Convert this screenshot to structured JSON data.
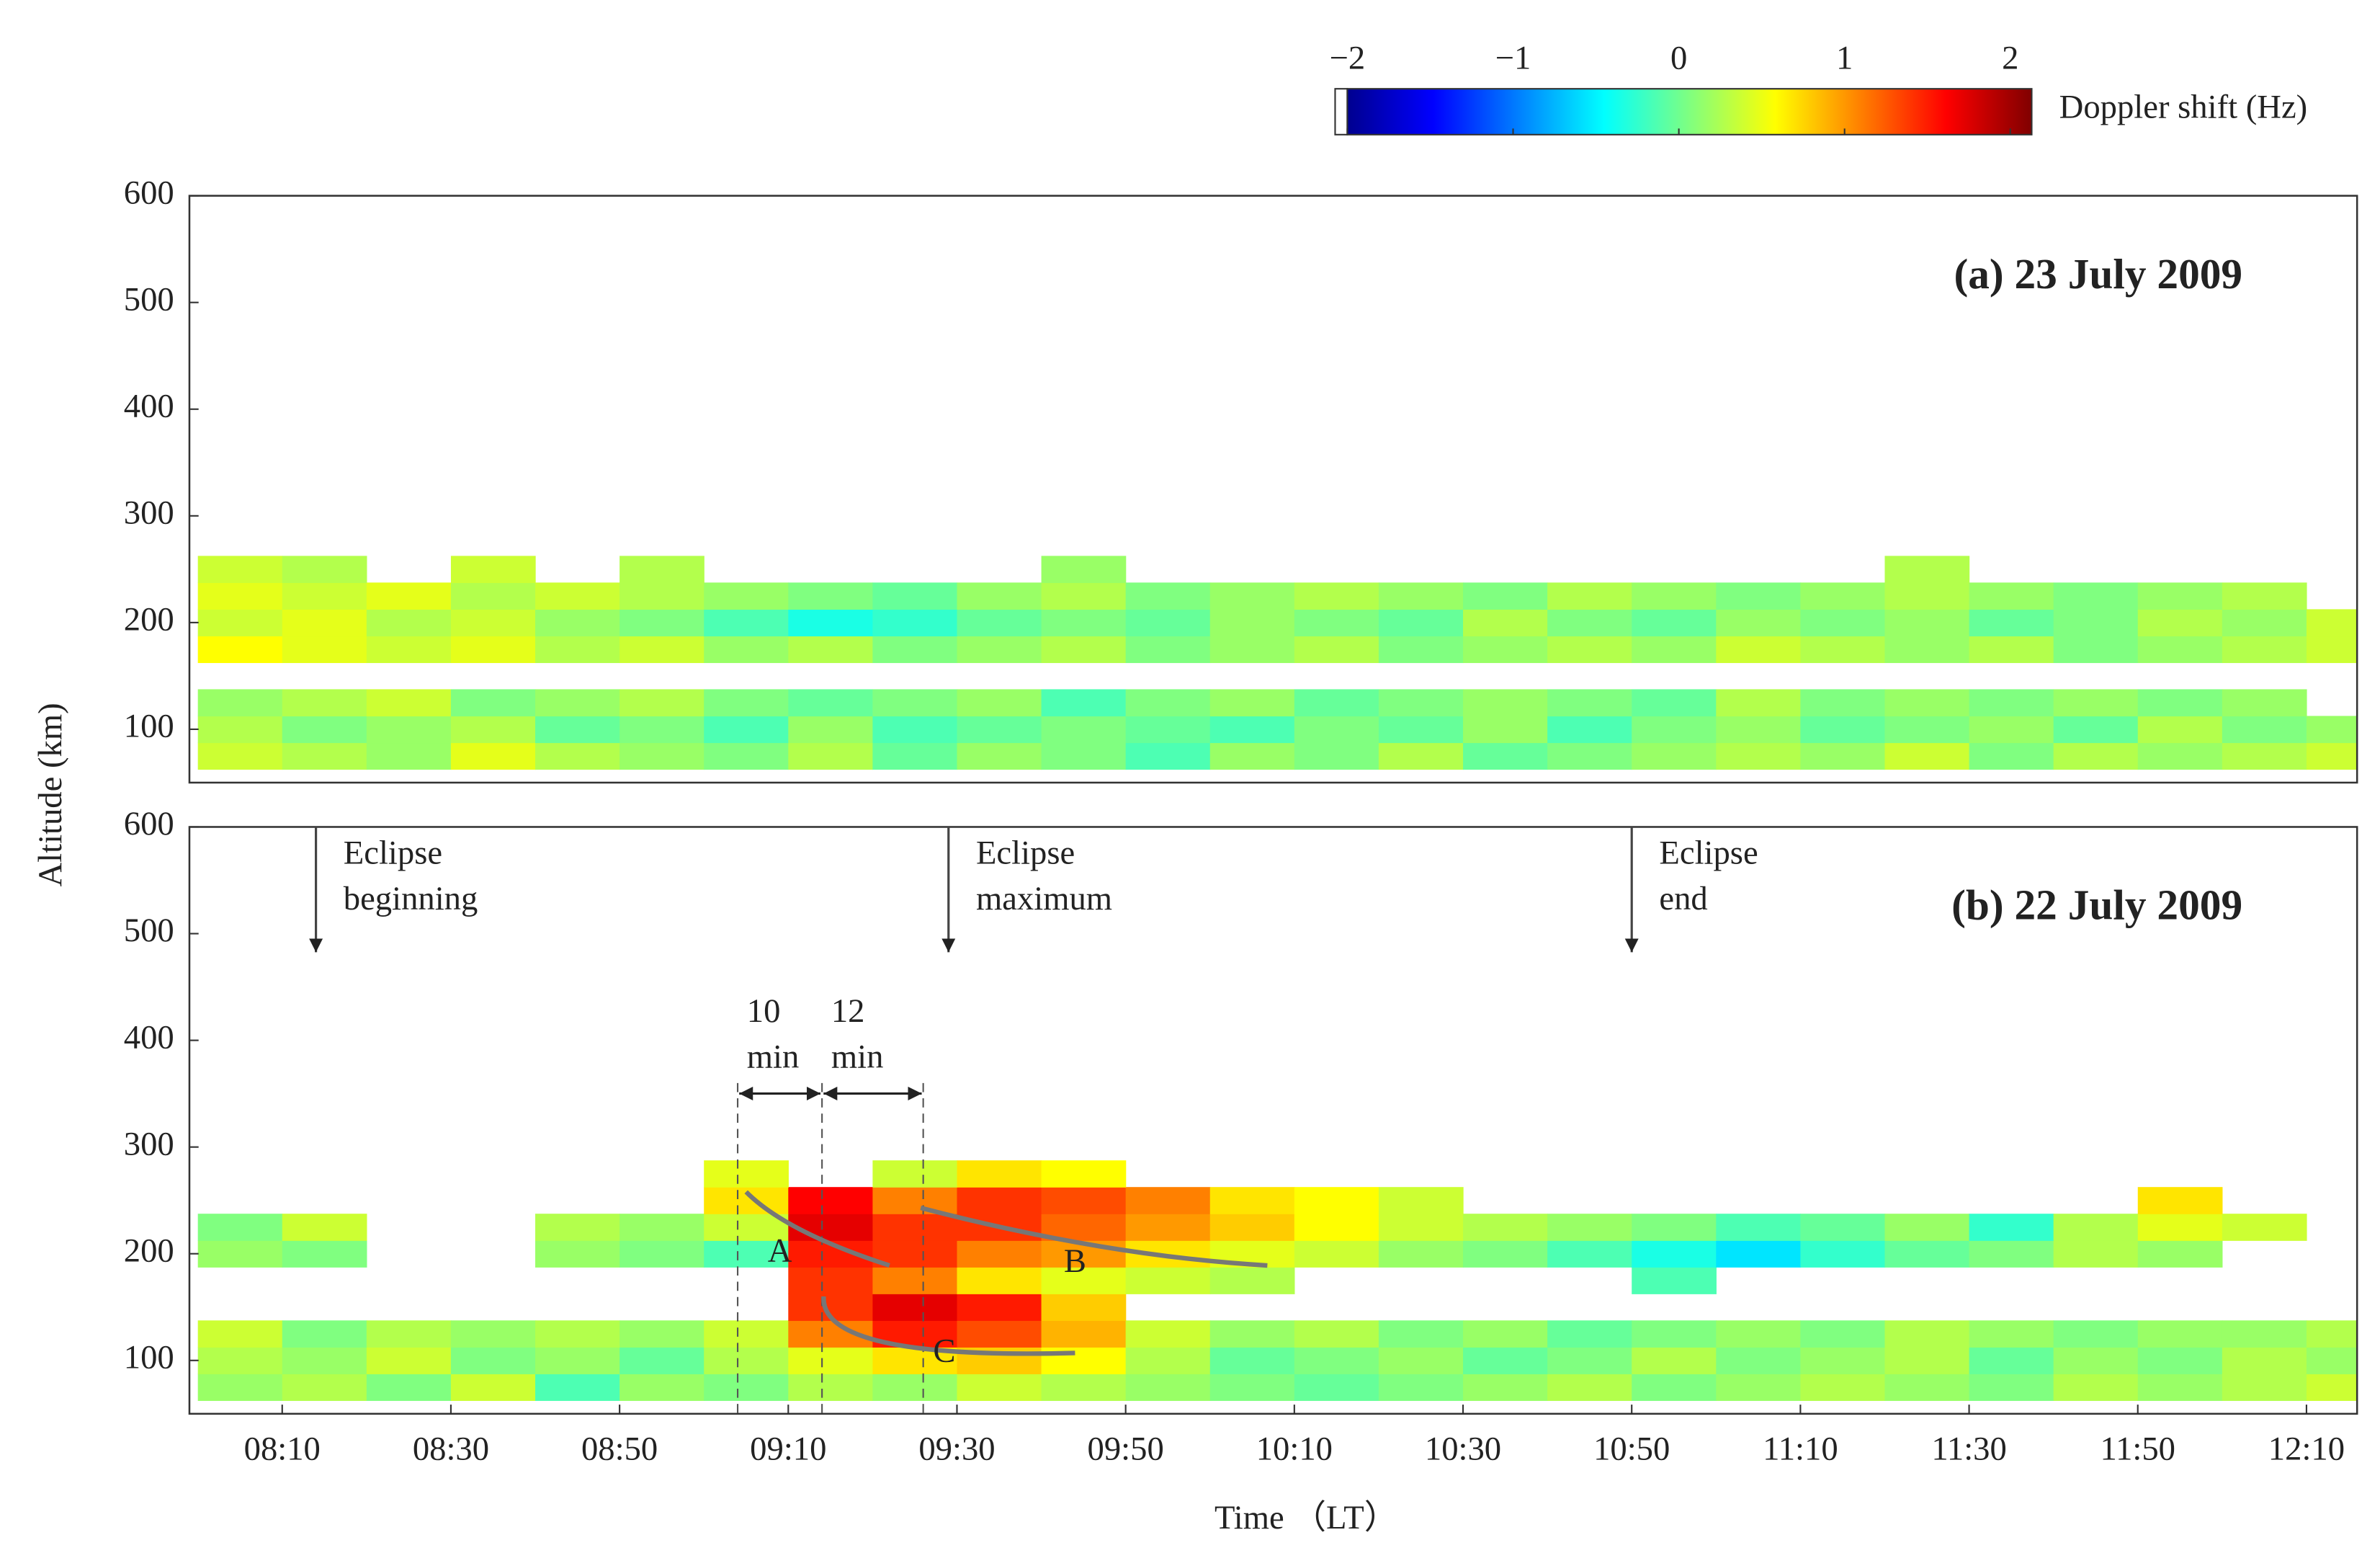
{
  "chart_data": [
    {
      "type": "heatmap",
      "title": "(a)  23 July 2009",
      "ylabel": "Altitude (km)",
      "xlim": [
        479,
        736
      ],
      "ylim": [
        50,
        600
      ],
      "yticks": [
        100,
        200,
        300,
        400,
        500,
        600
      ],
      "colorbar": {
        "label": "Doppler shift (Hz)",
        "lim": [
          -2,
          2
        ],
        "colormap": "jet",
        "ticks": [
          {
            "value": -2,
            "label": "−2"
          },
          {
            "value": -1,
            "label": "−1"
          },
          0,
          1,
          2
        ]
      },
      "x": [
        485,
        495,
        505,
        515,
        525,
        535,
        545,
        555,
        565,
        575,
        585,
        595,
        605,
        615,
        625,
        635,
        645,
        655,
        665,
        675,
        685,
        695,
        705,
        715,
        725,
        735
      ],
      "y": [
        75,
        100,
        125,
        150,
        175,
        200,
        225,
        250,
        275
      ],
      "z": [
        [
          0.3,
          0.2,
          0.1,
          0.4,
          0.2,
          0.1,
          0.0,
          0.2,
          -0.1,
          0.1,
          0.0,
          -0.2,
          0.1,
          0.0,
          0.2,
          -0.1,
          0.0,
          0.1,
          0.2,
          0.1,
          0.3,
          0.0,
          0.2,
          0.1,
          0.2,
          0.3
        ],
        [
          0.2,
          0.0,
          0.1,
          0.2,
          -0.1,
          0.0,
          -0.2,
          0.1,
          -0.2,
          -0.1,
          0.0,
          -0.1,
          -0.2,
          0.0,
          -0.1,
          0.1,
          -0.2,
          0.0,
          0.1,
          -0.1,
          0.0,
          0.1,
          -0.1,
          0.2,
          0.0,
          0.1
        ],
        [
          0.1,
          0.2,
          0.3,
          0.0,
          0.1,
          0.2,
          0.0,
          -0.1,
          0.0,
          0.1,
          -0.2,
          0.0,
          0.1,
          -0.1,
          0.0,
          0.1,
          0.0,
          -0.1,
          0.2,
          0.0,
          0.1,
          0.0,
          0.1,
          0.0,
          0.1,
          null
        ],
        [
          null,
          null,
          null,
          null,
          null,
          null,
          null,
          null,
          null,
          null,
          null,
          null,
          null,
          null,
          null,
          null,
          null,
          null,
          null,
          null,
          null,
          null,
          null,
          null,
          null,
          null
        ],
        [
          0.5,
          0.4,
          0.3,
          0.4,
          0.2,
          0.3,
          0.1,
          0.2,
          0.0,
          0.1,
          0.2,
          0.0,
          0.1,
          0.2,
          0.0,
          0.1,
          0.2,
          0.1,
          0.3,
          0.2,
          0.1,
          0.2,
          0.0,
          0.1,
          0.2,
          0.3
        ],
        [
          0.3,
          0.4,
          0.2,
          0.3,
          0.1,
          0.0,
          -0.2,
          -0.4,
          -0.3,
          -0.1,
          0.0,
          -0.1,
          0.1,
          0.0,
          -0.1,
          0.2,
          0.0,
          -0.1,
          0.1,
          0.0,
          0.1,
          -0.1,
          0.0,
          0.2,
          0.1,
          0.3
        ],
        [
          0.4,
          0.3,
          0.4,
          0.2,
          0.3,
          0.2,
          0.1,
          0.0,
          -0.1,
          0.1,
          0.2,
          0.0,
          0.1,
          0.2,
          0.1,
          0.0,
          0.2,
          0.1,
          0.0,
          0.1,
          0.2,
          0.1,
          0.0,
          0.1,
          0.2,
          null
        ],
        [
          0.3,
          0.2,
          null,
          0.3,
          null,
          0.2,
          null,
          null,
          null,
          null,
          0.1,
          null,
          null,
          null,
          null,
          null,
          null,
          null,
          null,
          null,
          0.2,
          null,
          null,
          null,
          null,
          null
        ],
        [
          null,
          null,
          null,
          null,
          null,
          null,
          null,
          null,
          null,
          null,
          null,
          null,
          null,
          null,
          null,
          null,
          null,
          null,
          null,
          null,
          null,
          null,
          null,
          null,
          null,
          null
        ]
      ]
    },
    {
      "type": "heatmap",
      "title": "(b) 22 July 2009",
      "xlabel": "Time （LT）",
      "xlim": [
        479,
        736
      ],
      "ylim": [
        50,
        600
      ],
      "yticks": [
        100,
        200,
        300,
        400,
        500,
        600
      ],
      "xticks": [
        {
          "value": 490,
          "label": "08:10"
        },
        {
          "value": 510,
          "label": "08:30"
        },
        {
          "value": 530,
          "label": "08:50"
        },
        {
          "value": 550,
          "label": "09:10"
        },
        {
          "value": 570,
          "label": "09:30"
        },
        {
          "value": 590,
          "label": "09:50"
        },
        {
          "value": 610,
          "label": "10:10"
        },
        {
          "value": 630,
          "label": "10:30"
        },
        {
          "value": 650,
          "label": "10:50"
        },
        {
          "value": 670,
          "label": "11:10"
        },
        {
          "value": 690,
          "label": "11:30"
        },
        {
          "value": 710,
          "label": "11:50"
        },
        {
          "value": 730,
          "label": "12:10"
        }
      ],
      "x": [
        485,
        495,
        505,
        515,
        525,
        535,
        545,
        555,
        565,
        575,
        585,
        595,
        605,
        615,
        625,
        635,
        645,
        655,
        665,
        675,
        685,
        695,
        705,
        715,
        725,
        735
      ],
      "y": [
        75,
        100,
        125,
        150,
        175,
        200,
        225,
        250,
        275
      ],
      "z": [
        [
          0.1,
          0.2,
          0.0,
          0.3,
          -0.2,
          0.1,
          0.0,
          0.2,
          0.1,
          0.3,
          0.2,
          0.1,
          0.0,
          -0.1,
          0.0,
          0.1,
          0.2,
          0.0,
          0.1,
          0.2,
          0.1,
          0.0,
          0.2,
          0.1,
          0.2,
          0.3
        ],
        [
          0.2,
          0.1,
          0.3,
          0.0,
          0.1,
          -0.1,
          0.2,
          0.4,
          0.6,
          0.7,
          0.5,
          0.2,
          -0.1,
          0.0,
          0.1,
          -0.1,
          0.0,
          0.2,
          0.0,
          0.1,
          0.2,
          -0.1,
          0.1,
          0.0,
          0.2,
          0.1
        ],
        [
          0.3,
          0.0,
          0.2,
          0.1,
          0.2,
          0.1,
          0.3,
          1.0,
          1.4,
          1.2,
          0.8,
          0.3,
          0.1,
          0.2,
          0.0,
          0.1,
          -0.1,
          0.0,
          0.1,
          0.0,
          0.2,
          0.1,
          0.0,
          0.1,
          0.1,
          0.2
        ],
        [
          null,
          null,
          null,
          null,
          null,
          null,
          null,
          1.3,
          1.6,
          1.4,
          0.7,
          null,
          null,
          null,
          null,
          null,
          null,
          null,
          null,
          null,
          null,
          null,
          null,
          null,
          null,
          null
        ],
        [
          null,
          null,
          null,
          null,
          null,
          null,
          null,
          1.3,
          1.0,
          0.6,
          0.4,
          0.3,
          0.2,
          null,
          null,
          null,
          null,
          -0.2,
          null,
          null,
          null,
          null,
          null,
          null,
          null,
          null
        ],
        [
          0.1,
          0.0,
          null,
          null,
          0.1,
          0.0,
          -0.2,
          1.4,
          1.3,
          1.0,
          0.9,
          0.6,
          0.4,
          0.3,
          0.1,
          0.0,
          -0.2,
          -0.4,
          -0.6,
          -0.3,
          -0.1,
          0.0,
          0.2,
          0.1,
          null,
          null
        ],
        [
          0.0,
          0.3,
          null,
          null,
          0.2,
          0.1,
          0.3,
          1.6,
          1.3,
          1.3,
          1.1,
          0.9,
          0.7,
          0.5,
          0.3,
          0.2,
          0.1,
          0.0,
          -0.2,
          -0.1,
          0.1,
          -0.3,
          0.2,
          0.4,
          0.3,
          null
        ],
        [
          null,
          null,
          null,
          null,
          null,
          null,
          0.6,
          1.5,
          1.0,
          1.3,
          1.2,
          1.0,
          0.6,
          0.5,
          0.3,
          null,
          null,
          null,
          null,
          null,
          null,
          null,
          null,
          0.6,
          null,
          null
        ],
        [
          null,
          null,
          null,
          null,
          null,
          null,
          0.4,
          null,
          0.3,
          0.6,
          0.5,
          null,
          null,
          null,
          null,
          null,
          null,
          null,
          null,
          null,
          null,
          null,
          null,
          null,
          null,
          null
        ]
      ],
      "events": [
        {
          "x": 494,
          "lines": [
            "Eclipse",
            "beginning"
          ]
        },
        {
          "x": 569,
          "lines": [
            "Eclipse",
            "maximum"
          ]
        },
        {
          "x": 650,
          "lines": [
            "Eclipse",
            "end"
          ]
        }
      ],
      "dividers": [
        544,
        554,
        566
      ],
      "intervals": [
        {
          "x0": 544,
          "x1": 554,
          "lines": [
            "10",
            "min"
          ]
        },
        {
          "x0": 554,
          "x1": 566,
          "lines": [
            "12",
            "min"
          ]
        }
      ],
      "curves": [
        {
          "label": "A",
          "at": [
            549,
            200
          ],
          "points": [
            [
              545,
              258
            ],
            [
              551.6,
              222
            ],
            [
              562,
              189
            ]
          ]
        },
        {
          "label": "B",
          "at": [
            584,
            190
          ],
          "points": [
            [
              565.7,
              243
            ],
            [
              586.9,
              207
            ],
            [
              606.8,
              189
            ]
          ]
        },
        {
          "label": "C",
          "at": [
            568.5,
            106
          ],
          "points": [
            [
              554.2,
              160
            ],
            [
              561.4,
              117
            ],
            [
              584,
              107
            ]
          ]
        }
      ]
    }
  ]
}
